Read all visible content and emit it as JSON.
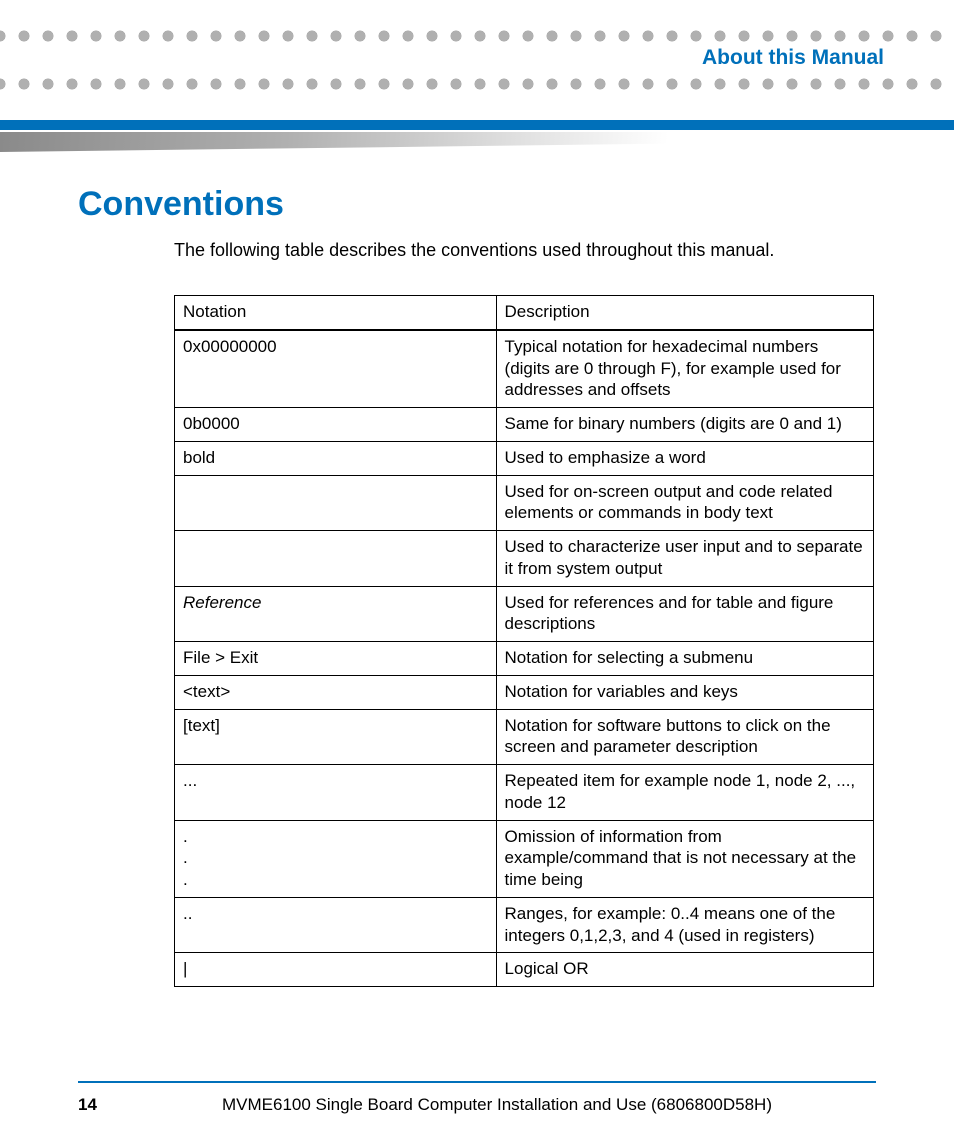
{
  "colors": {
    "brand": "#0070ba",
    "dot": "#b0b0b0",
    "text": "#000000",
    "bg": "#ffffff"
  },
  "header": {
    "section": "About this Manual"
  },
  "main": {
    "title": "Conventions",
    "intro": "The following table describes the conventions used throughout this manual."
  },
  "table": {
    "columns": [
      "Notation",
      "Description"
    ],
    "rows": [
      {
        "notation": "0x00000000",
        "description": "Typical notation for hexadecimal numbers (digits are 0 through F), for example used for addresses and offsets"
      },
      {
        "notation": "0b0000",
        "description": "Same for binary numbers (digits are 0 and 1)"
      },
      {
        "notation": "bold",
        "description": "Used to emphasize a word"
      },
      {
        "notation": "",
        "description": "Used for on-screen output and code related elements or commands in body text"
      },
      {
        "notation": "",
        "description": "Used to characterize user input and to separate it from system output"
      },
      {
        "notation": "Reference",
        "notation_style": "italic",
        "description": "Used for references and for table and figure descriptions"
      },
      {
        "notation": "File > Exit",
        "description": "Notation for selecting a submenu"
      },
      {
        "notation": "<text>",
        "description": "Notation for  variables and keys"
      },
      {
        "notation": "[text]",
        "description": "Notation for software buttons to click on the screen and parameter description"
      },
      {
        "notation": "...",
        "description": "Repeated item for example node 1, node 2, ..., node 12"
      },
      {
        "notation": ".\n.\n.",
        "description": "Omission of information from example/command that is not necessary at the time being"
      },
      {
        "notation": "..",
        "description": "Ranges, for example: 0..4 means one of the integers 0,1,2,3, and 4 (used in registers)"
      },
      {
        "notation": " |",
        "description": "Logical OR"
      }
    ]
  },
  "footer": {
    "page": "14",
    "doc": "MVME6100 Single Board Computer Installation and Use (6806800D58H)"
  }
}
